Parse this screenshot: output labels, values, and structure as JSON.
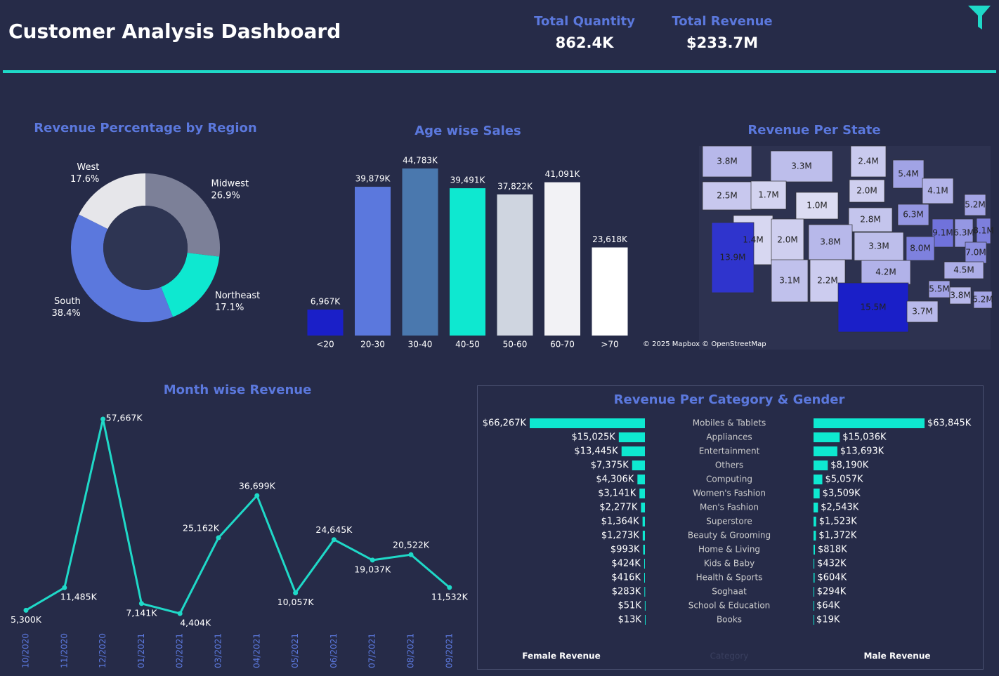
{
  "header": {
    "title": "Customer Analysis Dashboard",
    "kpis": [
      {
        "label": "Total Quantity",
        "value": "862.4K"
      },
      {
        "label": "Total Revenue",
        "value": "$233.7M"
      }
    ]
  },
  "chart_data": [
    {
      "type": "pie",
      "title": "Revenue Percentage by Region",
      "categories": [
        "Midwest",
        "Northeast",
        "South",
        "West"
      ],
      "values": [
        26.9,
        17.1,
        38.4,
        17.6
      ],
      "value_labels": [
        "26.9%",
        "17.1%",
        "38.4%",
        "17.6%"
      ],
      "colors": [
        "#7c8098",
        "#0ee8d0",
        "#5b78dd",
        "#e6e6ea"
      ]
    },
    {
      "type": "bar",
      "title": "Age wise Sales",
      "categories": [
        "<20",
        "20-30",
        "30-40",
        "40-50",
        "50-60",
        "60-70",
        ">70"
      ],
      "values": [
        6967,
        39879,
        44783,
        39491,
        37822,
        41091,
        23618
      ],
      "value_labels": [
        "6,967K",
        "39,879K",
        "44,783K",
        "39,491K",
        "37,822K",
        "41,091K",
        "23,618K"
      ],
      "colors": [
        "#1a1fc8",
        "#5b78dd",
        "#4a78ae",
        "#0ee8d0",
        "#cfd5e0",
        "#f2f2f5",
        "#ffffff"
      ]
    },
    {
      "type": "map",
      "title": "Revenue Per State",
      "values": [
        3.8,
        3.3,
        2.4,
        5.4,
        2.5,
        1.7,
        2.0,
        4.1,
        1.0,
        2.8,
        6.3,
        5.2,
        1.4,
        2.0,
        3.8,
        3.3,
        9.1,
        6.3,
        8.1,
        8.0,
        13.9,
        7.0,
        4.2,
        4.5,
        3.1,
        2.2,
        5.5,
        3.8,
        5.2,
        15.5,
        3.7
      ],
      "value_labels": [
        "3.8M",
        "3.3M",
        "2.4M",
        "5.4M",
        "2.5M",
        "1.7M",
        "2.0M",
        "4.1M",
        "1.0M",
        "2.8M",
        "6.3M",
        "5.2M",
        "1.4M",
        "2.0M",
        "3.8M",
        "3.3M",
        "9.1M",
        "6.3M",
        "8.1M",
        "8.0M",
        "13.9M",
        "7.0M",
        "4.2M",
        "4.5M",
        "3.1M",
        "2.2M",
        "5.5M",
        "3.8M",
        "5.2M",
        "15.5M",
        "3.7M"
      ],
      "colors": [
        "#dcdcf2",
        "#1a1fc8"
      ],
      "attribution": "© 2025 Mapbox © OpenStreetMap"
    },
    {
      "type": "line",
      "title": "Month wise Revenue",
      "categories": [
        "10/2020",
        "11/2020",
        "12/2020",
        "01/2021",
        "02/2021",
        "03/2021",
        "04/2021",
        "05/2021",
        "06/2021",
        "07/2021",
        "08/2021",
        "09/2021"
      ],
      "values": [
        5300,
        11485,
        57667,
        7141,
        4404,
        25162,
        36699,
        10057,
        24645,
        19037,
        20522,
        11532
      ],
      "value_labels": [
        "5,300K",
        "11,485K",
        "57,667K",
        "7,141K",
        "4,404K",
        "25,162K",
        "36,699K",
        "10,057K",
        "24,645K",
        "19,037K",
        "20,522K",
        "11,532K"
      ],
      "color": "#1fd9c8"
    },
    {
      "type": "butterfly",
      "title": "Revenue Per Category & Gender",
      "category_label": "Category",
      "categories": [
        "Mobiles & Tablets",
        "Appliances",
        "Entertainment",
        "Others",
        "Computing",
        "Women's Fashion",
        "Men's Fashion",
        "Superstore",
        "Beauty & Grooming",
        "Home & Living",
        "Kids & Baby",
        "Health & Sports",
        "Soghaat",
        "School & Education",
        "Books"
      ],
      "series": [
        {
          "name": "Female Revenue",
          "color": "#0ee8d0",
          "values": [
            66267,
            15025,
            13445,
            7375,
            4306,
            3141,
            2277,
            1364,
            1273,
            993,
            424,
            416,
            283,
            51,
            13
          ],
          "value_labels": [
            "$66,267K",
            "$15,025K",
            "$13,445K",
            "$7,375K",
            "$4,306K",
            "$3,141K",
            "$2,277K",
            "$1,364K",
            "$1,273K",
            "$993K",
            "$424K",
            "$416K",
            "$283K",
            "$51K",
            "$13K"
          ]
        },
        {
          "name": "Male Revenue",
          "color": "#0ee8d0",
          "values": [
            63845,
            15036,
            13693,
            8190,
            5057,
            3509,
            2543,
            1523,
            1372,
            818,
            432,
            604,
            294,
            64,
            19
          ],
          "value_labels": [
            "$63,845K",
            "$15,036K",
            "$13,693K",
            "$8,190K",
            "$5,057K",
            "$3,509K",
            "$2,543K",
            "$1,523K",
            "$1,372K",
            "$818K",
            "$432K",
            "$604K",
            "$294K",
            "$64K",
            "$19K"
          ]
        }
      ]
    }
  ]
}
